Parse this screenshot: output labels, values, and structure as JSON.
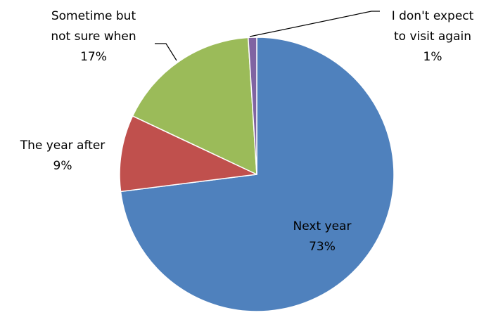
{
  "chart_data": {
    "type": "pie",
    "title": "",
    "slices": [
      {
        "label_lines": [
          "Next year"
        ],
        "percent_label": "73%",
        "value": 73,
        "color": "#4F81BD"
      },
      {
        "label_lines": [
          "The year after"
        ],
        "percent_label": "9%",
        "value": 9,
        "color": "#C0504D"
      },
      {
        "label_lines": [
          "Sometime but",
          "not sure when"
        ],
        "percent_label": "17%",
        "value": 17,
        "color": "#9BBB59"
      },
      {
        "label_lines": [
          "I don't expect",
          "to visit again"
        ],
        "percent_label": "1%",
        "value": 1,
        "color": "#8064A2"
      }
    ],
    "legend": "none",
    "start_angle": "12 o'clock",
    "direction": "clockwise"
  }
}
